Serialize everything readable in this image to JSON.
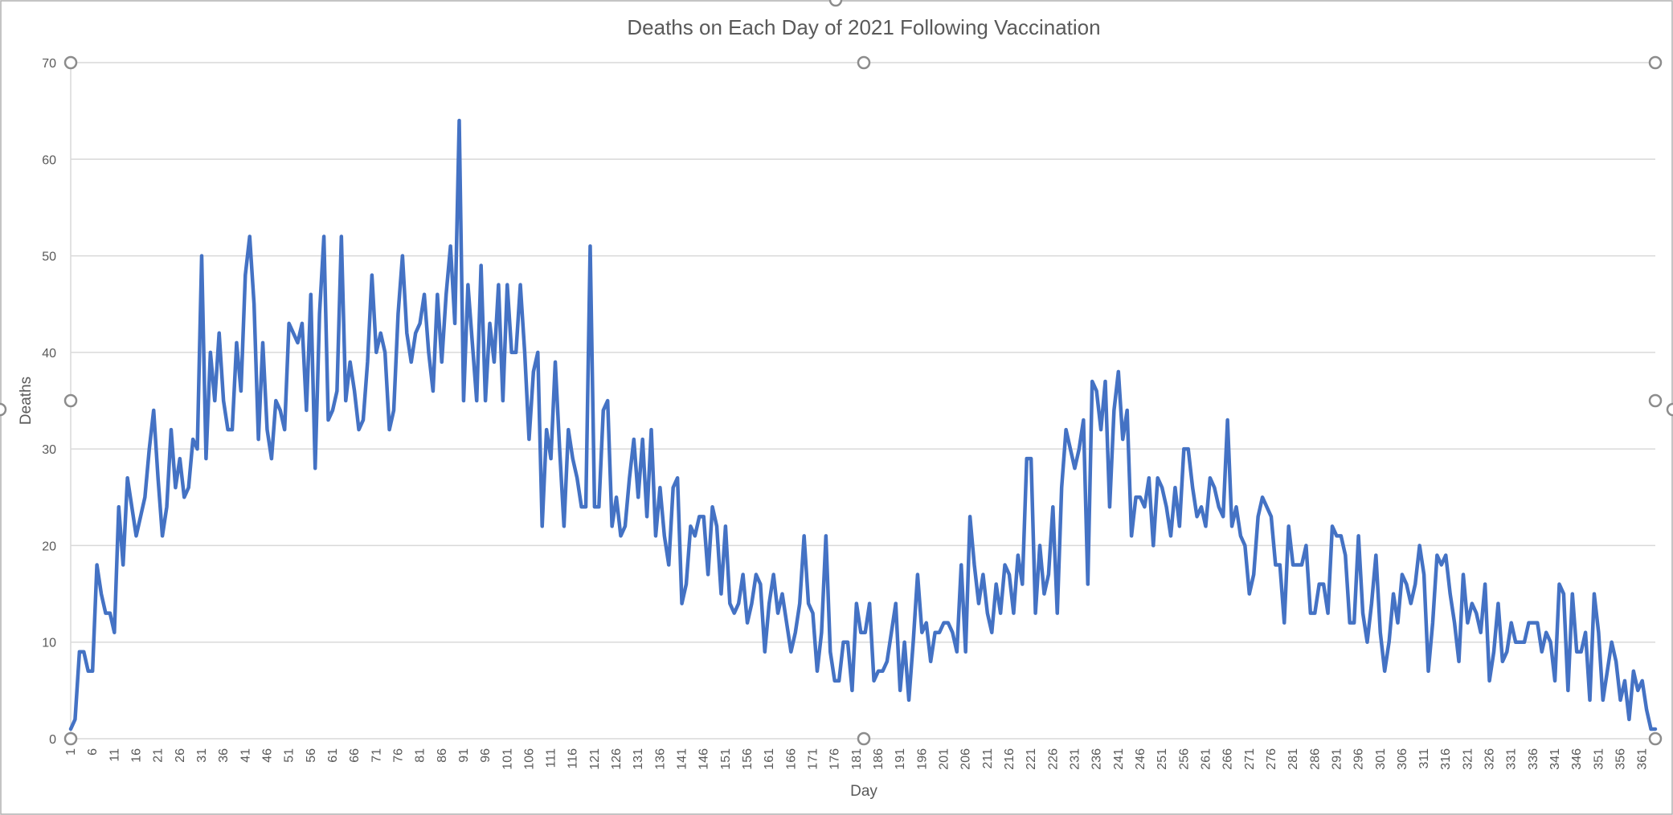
{
  "chart_data": {
    "type": "line",
    "title": "Deaths on Each Day of 2021 Following Vaccination",
    "xlabel": "Day",
    "ylabel": "Deaths",
    "ylim": [
      0,
      70
    ],
    "yticks": [
      0,
      10,
      20,
      30,
      40,
      50,
      60,
      70
    ],
    "xtick_step": 5,
    "grid": true,
    "legend": "none",
    "line_color": "#4472c4",
    "x_start": 1,
    "series": [
      {
        "values": [
          1,
          2,
          9,
          9,
          7,
          7,
          18,
          15,
          13,
          13,
          11,
          24,
          18,
          27,
          24,
          21,
          23,
          25,
          30,
          34,
          27,
          21,
          24,
          32,
          26,
          29,
          25,
          26,
          31,
          30,
          50,
          29,
          40,
          35,
          42,
          35,
          32,
          32,
          41,
          36,
          48,
          52,
          45,
          31,
          41,
          32,
          29,
          35,
          34,
          32,
          43,
          42,
          41,
          43,
          34,
          46,
          28,
          44,
          52,
          33,
          34,
          36,
          52,
          35,
          39,
          36,
          32,
          33,
          39,
          48,
          40,
          42,
          40,
          32,
          34,
          44,
          50,
          42,
          39,
          42,
          43,
          46,
          40,
          36,
          46,
          39,
          46,
          51,
          43,
          64,
          35,
          47,
          41,
          35,
          49,
          35,
          43,
          39,
          47,
          35,
          47,
          40,
          40,
          47,
          40,
          31,
          38,
          40,
          22,
          32,
          29,
          39,
          30,
          22,
          32,
          29,
          27,
          24,
          24,
          51,
          24,
          24,
          34,
          35,
          22,
          25,
          21,
          22,
          27,
          31,
          25,
          31,
          23,
          32,
          21,
          26,
          21,
          18,
          26,
          27,
          14,
          16,
          22,
          21,
          23,
          23,
          17,
          24,
          22,
          15,
          22,
          14,
          13,
          14,
          17,
          12,
          14,
          17,
          16,
          9,
          14,
          17,
          13,
          15,
          12,
          9,
          11,
          14,
          21,
          14,
          13,
          7,
          11,
          21,
          9,
          6,
          6,
          10,
          10,
          5,
          14,
          11,
          11,
          14,
          6,
          7,
          7,
          8,
          11,
          14,
          5,
          10,
          4,
          10,
          17,
          11,
          12,
          8,
          11,
          11,
          12,
          12,
          11,
          9,
          18,
          9,
          23,
          18,
          14,
          17,
          13,
          11,
          16,
          13,
          18,
          17,
          13,
          19,
          16,
          29,
          29,
          13,
          20,
          15,
          17,
          24,
          13,
          26,
          32,
          30,
          28,
          30,
          33,
          16,
          37,
          36,
          32,
          37,
          24,
          34,
          38,
          31,
          34,
          21,
          25,
          25,
          24,
          27,
          20,
          27,
          26,
          24,
          21,
          26,
          22,
          30,
          30,
          26,
          23,
          24,
          22,
          27,
          26,
          24,
          23,
          33,
          22,
          24,
          21,
          20,
          15,
          17,
          23,
          25,
          24,
          23,
          18,
          18,
          12,
          22,
          18,
          18,
          18,
          20,
          13,
          13,
          16,
          16,
          13,
          22,
          21,
          21,
          19,
          12,
          12,
          21,
          13,
          10,
          14,
          19,
          11,
          7,
          10,
          15,
          12,
          17,
          16,
          14,
          16,
          20,
          17,
          7,
          12,
          19,
          18,
          19,
          15,
          12,
          8,
          17,
          12,
          14,
          13,
          11,
          16,
          6,
          9,
          14,
          8,
          9,
          12,
          10,
          10,
          10,
          12,
          12,
          12,
          9,
          11,
          10,
          6,
          16,
          15,
          5,
          15,
          9,
          9,
          11,
          4,
          15,
          11,
          4,
          7,
          10,
          8,
          4,
          6,
          2,
          7,
          5,
          6,
          3,
          1,
          1
        ]
      }
    ]
  }
}
